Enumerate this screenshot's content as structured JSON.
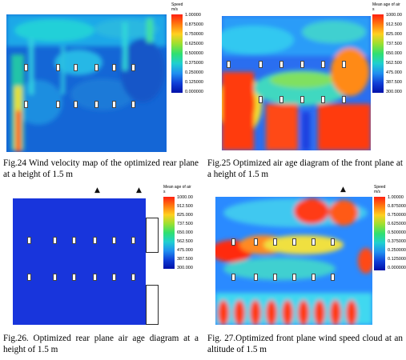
{
  "figures": [
    {
      "id": "fig24",
      "caption": "Fig.24 Wind velocity map of the optimized rear plane at a height of 1.5 m",
      "legend_title": "Speed\nm/s",
      "legend_ticks": [
        "1.00000",
        "0.875000",
        "0.750000",
        "0.625000",
        "0.500000",
        "0.375000",
        "0.250000",
        "0.125000",
        "0.000000"
      ],
      "colors": {
        "background": "#1466d6",
        "accent": "#1fd0e0"
      }
    },
    {
      "id": "fig25",
      "caption": "Fig.25 Optimized air age diagram of the front plane at a height of 1.5 m",
      "legend_title": "Mean age of air\ns",
      "legend_ticks": [
        "1000.00",
        "912.500",
        "825.000",
        "737.500",
        "650.000",
        "562.500",
        "475.000",
        "387.500",
        "300.000"
      ],
      "colors": {
        "background": "#f83a10",
        "accent": "#2aa0ff"
      }
    },
    {
      "id": "fig26",
      "caption": "Fig.26. Optimized rear plane air age diagram at a height of 1.5 m",
      "legend_title": "Mean age of air\ns",
      "legend_ticks": [
        "1000.00",
        "912.500",
        "825.000",
        "737.500",
        "650.000",
        "562.500",
        "475.000",
        "387.500",
        "300.000"
      ],
      "colors": {
        "background": "#1530d8",
        "accent": "#000000"
      }
    },
    {
      "id": "fig27",
      "caption": "Fig. 27.Optimized front plane wind speed cloud at an altitude of 1.5 m",
      "legend_title": "Speed\nm/s",
      "legend_ticks": [
        "1.00000",
        "0.875000",
        "0.750000",
        "0.625000",
        "0.500000",
        "0.375000",
        "0.250000",
        "0.125000",
        "0.000000"
      ],
      "colors": {
        "background": "#2a8aff",
        "accent": "#ff2a1a"
      }
    }
  ],
  "icons": [
    "air-inlet-icon",
    "legend-colorbar-icon"
  ]
}
